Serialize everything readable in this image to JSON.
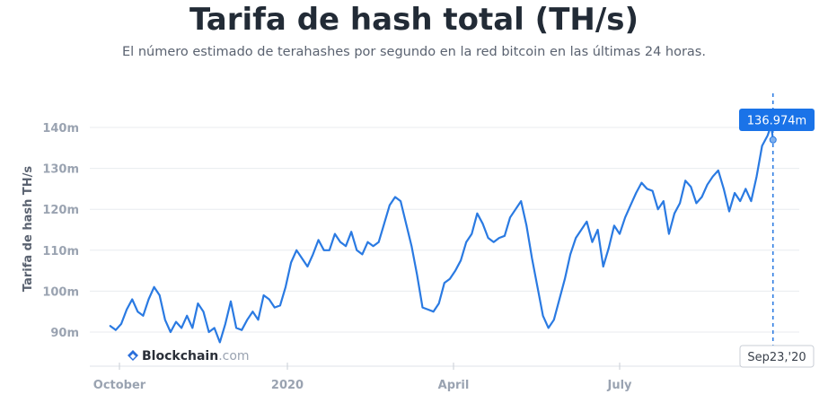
{
  "title": "Tarifa de hash total (TH/s)",
  "subtitle": "El número estimado de terahashes por segundo en la red bitcoin en las últimas 24 horas.",
  "watermark": {
    "brand": "Blockchain",
    "suffix": ".com"
  },
  "colors": {
    "line": "#2a7ae2",
    "callout_bg": "#1a73e8",
    "grid": "#e8ebef"
  },
  "chart_data": {
    "type": "line",
    "title": "Tarifa de hash total (TH/s)",
    "ylabel": "Tarifa de hash TH/s",
    "xlabel": "",
    "ylim": [
      86,
      146
    ],
    "y_ticks": [
      90,
      100,
      110,
      120,
      130,
      140
    ],
    "y_tick_labels": [
      "90m",
      "100m",
      "110m",
      "120m",
      "130m",
      "140m"
    ],
    "x_ticks": [
      {
        "label": "October",
        "date": "2019-10-01"
      },
      {
        "label": "2020",
        "date": "2020-01-01"
      },
      {
        "label": "April",
        "date": "2020-04-01"
      },
      {
        "label": "July",
        "date": "2020-07-01"
      }
    ],
    "grid": true,
    "hover": {
      "date": "2020-09-23",
      "label": "Sep23,'20",
      "value": 136.974,
      "value_label": "136.974m"
    },
    "series": [
      {
        "values": [
          [
            "2019-09-26",
            91.5
          ],
          [
            "2019-09-29",
            90.5
          ],
          [
            "2019-10-02",
            92.0
          ],
          [
            "2019-10-05",
            95.5
          ],
          [
            "2019-10-08",
            98.0
          ],
          [
            "2019-10-11",
            95.0
          ],
          [
            "2019-10-14",
            94.0
          ],
          [
            "2019-10-17",
            98.0
          ],
          [
            "2019-10-20",
            101.0
          ],
          [
            "2019-10-23",
            99.0
          ],
          [
            "2019-10-26",
            93.0
          ],
          [
            "2019-10-29",
            90.0
          ],
          [
            "2019-11-01",
            92.5
          ],
          [
            "2019-11-04",
            91.0
          ],
          [
            "2019-11-07",
            94.0
          ],
          [
            "2019-11-10",
            91.0
          ],
          [
            "2019-11-13",
            97.0
          ],
          [
            "2019-11-16",
            95.0
          ],
          [
            "2019-11-19",
            90.0
          ],
          [
            "2019-11-22",
            91.0
          ],
          [
            "2019-11-25",
            87.5
          ],
          [
            "2019-11-28",
            92.0
          ],
          [
            "2019-12-01",
            97.5
          ],
          [
            "2019-12-04",
            91.0
          ],
          [
            "2019-12-07",
            90.5
          ],
          [
            "2019-12-10",
            93.0
          ],
          [
            "2019-12-13",
            95.0
          ],
          [
            "2019-12-16",
            93.0
          ],
          [
            "2019-12-19",
            99.0
          ],
          [
            "2019-12-22",
            98.0
          ],
          [
            "2019-12-25",
            96.0
          ],
          [
            "2019-12-28",
            96.5
          ],
          [
            "2019-12-31",
            101.0
          ],
          [
            "2020-01-03",
            107.0
          ],
          [
            "2020-01-06",
            110.0
          ],
          [
            "2020-01-09",
            108.0
          ],
          [
            "2020-01-12",
            106.0
          ],
          [
            "2020-01-15",
            109.0
          ],
          [
            "2020-01-18",
            112.5
          ],
          [
            "2020-01-21",
            110.0
          ],
          [
            "2020-01-24",
            110.0
          ],
          [
            "2020-01-27",
            114.0
          ],
          [
            "2020-01-30",
            112.0
          ],
          [
            "2020-02-02",
            111.0
          ],
          [
            "2020-02-05",
            114.5
          ],
          [
            "2020-02-08",
            110.0
          ],
          [
            "2020-02-11",
            109.0
          ],
          [
            "2020-02-14",
            112.0
          ],
          [
            "2020-02-17",
            111.0
          ],
          [
            "2020-02-20",
            112.0
          ],
          [
            "2020-02-23",
            116.5
          ],
          [
            "2020-02-26",
            121.0
          ],
          [
            "2020-02-29",
            123.0
          ],
          [
            "2020-03-03",
            122.0
          ],
          [
            "2020-03-06",
            116.5
          ],
          [
            "2020-03-09",
            111.0
          ],
          [
            "2020-03-12",
            104.0
          ],
          [
            "2020-03-15",
            96.0
          ],
          [
            "2020-03-18",
            95.5
          ],
          [
            "2020-03-21",
            95.0
          ],
          [
            "2020-03-24",
            97.0
          ],
          [
            "2020-03-27",
            102.0
          ],
          [
            "2020-03-30",
            103.0
          ],
          [
            "2020-04-02",
            105.0
          ],
          [
            "2020-04-05",
            107.5
          ],
          [
            "2020-04-08",
            112.0
          ],
          [
            "2020-04-11",
            114.0
          ],
          [
            "2020-04-14",
            119.0
          ],
          [
            "2020-04-17",
            116.5
          ],
          [
            "2020-04-20",
            113.0
          ],
          [
            "2020-04-23",
            112.0
          ],
          [
            "2020-04-26",
            113.0
          ],
          [
            "2020-04-29",
            113.5
          ],
          [
            "2020-05-02",
            118.0
          ],
          [
            "2020-05-05",
            120.0
          ],
          [
            "2020-05-08",
            122.0
          ],
          [
            "2020-05-11",
            116.0
          ],
          [
            "2020-05-14",
            108.0
          ],
          [
            "2020-05-17",
            101.0
          ],
          [
            "2020-05-20",
            94.0
          ],
          [
            "2020-05-23",
            91.0
          ],
          [
            "2020-05-26",
            93.0
          ],
          [
            "2020-05-29",
            98.0
          ],
          [
            "2020-06-01",
            103.0
          ],
          [
            "2020-06-04",
            109.0
          ],
          [
            "2020-06-07",
            113.0
          ],
          [
            "2020-06-10",
            115.0
          ],
          [
            "2020-06-13",
            117.0
          ],
          [
            "2020-06-16",
            112.0
          ],
          [
            "2020-06-19",
            115.0
          ],
          [
            "2020-06-22",
            106.0
          ],
          [
            "2020-06-25",
            110.5
          ],
          [
            "2020-06-28",
            116.0
          ],
          [
            "2020-07-01",
            114.0
          ],
          [
            "2020-07-04",
            118.0
          ],
          [
            "2020-07-07",
            121.0
          ],
          [
            "2020-07-10",
            124.0
          ],
          [
            "2020-07-13",
            126.5
          ],
          [
            "2020-07-16",
            125.0
          ],
          [
            "2020-07-19",
            124.5
          ],
          [
            "2020-07-22",
            120.0
          ],
          [
            "2020-07-25",
            122.0
          ],
          [
            "2020-07-28",
            114.0
          ],
          [
            "2020-07-31",
            119.0
          ],
          [
            "2020-08-03",
            121.5
          ],
          [
            "2020-08-06",
            127.0
          ],
          [
            "2020-08-09",
            125.5
          ],
          [
            "2020-08-12",
            121.5
          ],
          [
            "2020-08-15",
            123.0
          ],
          [
            "2020-08-18",
            126.0
          ],
          [
            "2020-08-21",
            128.0
          ],
          [
            "2020-08-24",
            129.5
          ],
          [
            "2020-08-27",
            125.0
          ],
          [
            "2020-08-30",
            119.5
          ],
          [
            "2020-09-02",
            124.0
          ],
          [
            "2020-09-05",
            122.0
          ],
          [
            "2020-09-08",
            125.0
          ],
          [
            "2020-09-11",
            122.0
          ],
          [
            "2020-09-14",
            128.0
          ],
          [
            "2020-09-17",
            135.5
          ],
          [
            "2020-09-20",
            138.0
          ],
          [
            "2020-09-22",
            140.5
          ],
          [
            "2020-09-23",
            136.974
          ]
        ]
      }
    ]
  }
}
